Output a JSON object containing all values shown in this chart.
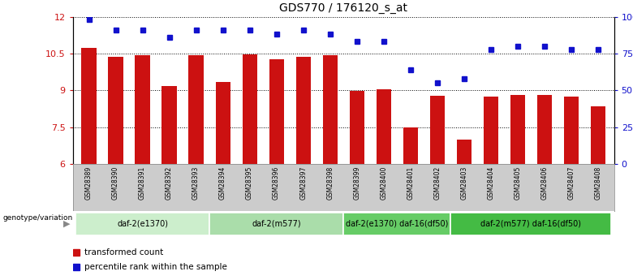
{
  "title": "GDS770 / 176120_s_at",
  "samples": [
    "GSM28389",
    "GSM28390",
    "GSM28391",
    "GSM28392",
    "GSM28393",
    "GSM28394",
    "GSM28395",
    "GSM28396",
    "GSM28397",
    "GSM28398",
    "GSM28399",
    "GSM28400",
    "GSM28401",
    "GSM28402",
    "GSM28403",
    "GSM28404",
    "GSM28405",
    "GSM28406",
    "GSM28407",
    "GSM28408"
  ],
  "bar_values": [
    10.72,
    10.38,
    10.44,
    9.18,
    10.44,
    9.33,
    10.48,
    10.28,
    10.36,
    10.42,
    8.97,
    9.05,
    7.48,
    8.78,
    6.98,
    8.76,
    8.82,
    8.82,
    8.76,
    8.35
  ],
  "dot_values": [
    98,
    91,
    91,
    86,
    91,
    91,
    91,
    88,
    91,
    88,
    83,
    83,
    64,
    55,
    58,
    78,
    80,
    80,
    78,
    78
  ],
  "ylim_left": [
    6,
    12
  ],
  "ylim_right": [
    0,
    100
  ],
  "yticks_left": [
    6,
    7.5,
    9,
    10.5,
    12
  ],
  "yticks_right": [
    0,
    25,
    50,
    75,
    100
  ],
  "ytick_labels_right": [
    "0",
    "25",
    "50",
    "75",
    "100%"
  ],
  "bar_color": "#cc1111",
  "dot_color": "#1111cc",
  "groups": [
    {
      "label": "daf-2(e1370)",
      "start": 0,
      "end": 4,
      "color": "#cceecc"
    },
    {
      "label": "daf-2(m577)",
      "start": 5,
      "end": 9,
      "color": "#aaddaa"
    },
    {
      "label": "daf-2(e1370) daf-16(df50)",
      "start": 10,
      "end": 13,
      "color": "#66cc66"
    },
    {
      "label": "daf-2(m577) daf-16(df50)",
      "start": 14,
      "end": 19,
      "color": "#44bb44"
    }
  ],
  "sample_row_color": "#cccccc",
  "legend_bar_label": "transformed count",
  "legend_dot_label": "percentile rank within the sample",
  "genotype_label": "genotype/variation",
  "bg_color": "#ffffff"
}
